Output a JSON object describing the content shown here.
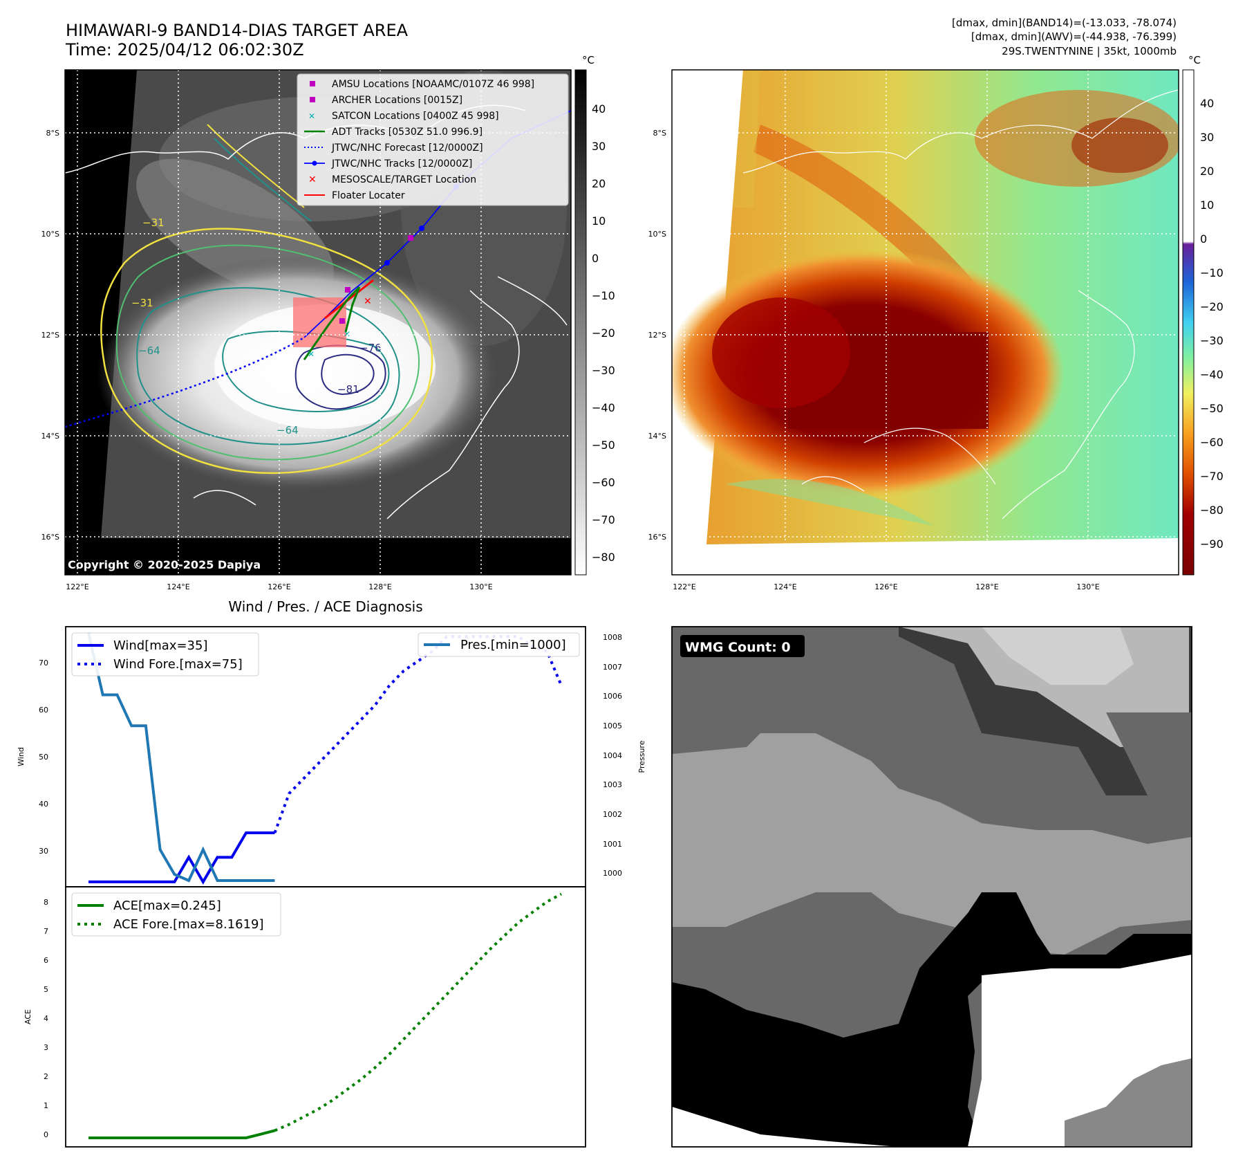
{
  "header": {
    "title": "HIMAWARI-9 BAND14-DIAS TARGET AREA",
    "time": "Time: 2025/04/12 06:02:30Z",
    "stats_line1": "[dmax, dmin](BAND14)=(-13.033, -78.074)",
    "stats_line2": "[dmax, dmin](AWV)=(-44.938, -76.399)",
    "stats_line3": "29S.TWENTYNINE | 35kt, 1000mb"
  },
  "copyright": "Copyright © 2020-2025 Dapiya",
  "map_axes": {
    "lon_ticks": [
      "122°E",
      "124°E",
      "126°E",
      "128°E",
      "130°E"
    ],
    "lat_ticks": [
      "8°S",
      "10°S",
      "12°S",
      "14°S",
      "16°S"
    ]
  },
  "ir_colorbar": {
    "unit": "°C",
    "ticks": [
      "40",
      "30",
      "20",
      "10",
      "0",
      "−10",
      "−20",
      "−30",
      "−40",
      "−50",
      "−60",
      "−70",
      "−80"
    ]
  },
  "awv_colorbar": {
    "unit": "°C",
    "ticks": [
      "40",
      "30",
      "20",
      "10",
      "0",
      "−10",
      "−20",
      "−30",
      "−40",
      "−50",
      "−60",
      "−70",
      "−80",
      "−90"
    ]
  },
  "contour_labels": [
    "−31",
    "−31",
    "−64",
    "−64",
    "−76",
    "−81"
  ],
  "legend": {
    "items": [
      {
        "label": "AMSU Locations [NOAAMC/0107Z 46 998]",
        "color": "#c000c0"
      },
      {
        "label": "ARCHER Locations [0015Z]",
        "color": "#c000c0"
      },
      {
        "label": "SATCON Locations [0400Z 45 998]",
        "color": "#00b0b0"
      },
      {
        "label": "ADT Tracks [0530Z 51.0 996.9]",
        "color": "#008000"
      },
      {
        "label": "JTWC/NHC Forecast [12/0000Z]",
        "color": "#0000ff"
      },
      {
        "label": "JTWC/NHC Tracks [12/0000Z]",
        "color": "#0000ff"
      },
      {
        "label": "MESOSCALE/TARGET Location",
        "color": "#ff0000"
      },
      {
        "label": "Floater Locater",
        "color": "#ff0000"
      }
    ]
  },
  "diag": {
    "title": "Wind / Pres. / ACE Diagnosis",
    "wind_ylabel": "Wind",
    "pres_ylabel": "Pressure",
    "ace_ylabel": "ACE",
    "wind_ticks": [
      "70",
      "60",
      "50",
      "40",
      "30"
    ],
    "pres_ticks": [
      "1008",
      "1007",
      "1006",
      "1005",
      "1004",
      "1003",
      "1002",
      "1001",
      "1000"
    ],
    "ace_ticks": [
      "8",
      "7",
      "6",
      "5",
      "4",
      "3",
      "2",
      "1",
      "0"
    ],
    "legend_wind": "Wind[max=35]",
    "legend_wind_fore": "Wind Fore.[max=75]",
    "legend_pres": "Pres.[min=1000]",
    "legend_ace": "ACE[max=0.245]",
    "legend_ace_fore": "ACE Fore.[max=8.1619]"
  },
  "wmg": {
    "label": "WMG Count: 0"
  },
  "chart_data": [
    {
      "type": "line",
      "title": "Wind / Pres. / ACE Diagnosis",
      "ylabel": "Wind",
      "ylim": [
        24,
        77
      ],
      "series": [
        {
          "name": "Wind[max=35]",
          "x": [
            0,
            1,
            2,
            3,
            4,
            5,
            6,
            7,
            8,
            9,
            10,
            11,
            12,
            13
          ],
          "values": [
            25,
            25,
            25,
            25,
            25,
            25,
            25,
            30,
            25,
            30,
            30,
            35,
            35,
            35
          ]
        },
        {
          "name": "Wind Fore.[max=75]",
          "x": [
            13,
            14,
            15,
            16,
            17,
            18,
            19,
            20,
            21,
            22,
            23,
            24,
            25,
            26,
            27,
            28,
            29,
            30,
            31,
            32,
            33
          ],
          "values": [
            35,
            43,
            46,
            49,
            52,
            55,
            58,
            61,
            65,
            68,
            70,
            72,
            75,
            75,
            75,
            75,
            75,
            75,
            73,
            72,
            65
          ]
        }
      ]
    },
    {
      "type": "line",
      "ylabel": "Pressure",
      "ylim": [
        999.8,
        1008.2
      ],
      "series": [
        {
          "name": "Pres.[min=1000]",
          "x": [
            0,
            1,
            2,
            3,
            4,
            5,
            6,
            7,
            8,
            9,
            10,
            11,
            12,
            13
          ],
          "values": [
            1008,
            1006,
            1006,
            1005,
            1005,
            1001,
            1000.2,
            1000,
            1001,
            1000,
            1000,
            1000,
            1000,
            1000
          ]
        }
      ]
    },
    {
      "type": "line",
      "ylabel": "ACE",
      "ylim": [
        -0.3,
        8.4
      ],
      "series": [
        {
          "name": "ACE[max=0.245]",
          "x": [
            0,
            1,
            2,
            3,
            4,
            5,
            6,
            7,
            8,
            9,
            10,
            11,
            12,
            13
          ],
          "values": [
            0,
            0,
            0,
            0,
            0,
            0,
            0,
            0,
            0,
            0,
            0,
            0,
            0.12,
            0.245
          ]
        },
        {
          "name": "ACE Fore.[max=8.1619]",
          "x": [
            13,
            14,
            15,
            16,
            17,
            18,
            19,
            20,
            21,
            22,
            23,
            24,
            25,
            26,
            27,
            28,
            29,
            30,
            31,
            32,
            33
          ],
          "values": [
            0.245,
            0.45,
            0.7,
            0.95,
            1.25,
            1.6,
            1.95,
            2.35,
            2.8,
            3.3,
            3.8,
            4.3,
            4.8,
            5.3,
            5.8,
            6.3,
            6.75,
            7.2,
            7.55,
            7.9,
            8.16
          ]
        }
      ]
    }
  ]
}
